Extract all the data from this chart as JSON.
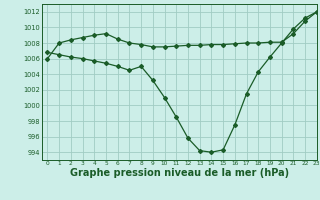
{
  "background_color": "#cceee8",
  "grid_color": "#a0ccc4",
  "line_color": "#1a5c28",
  "xlabel": "Graphe pression niveau de la mer (hPa)",
  "xlabel_fontsize": 7,
  "ylim": [
    993,
    1013
  ],
  "xlim": [
    -0.5,
    23
  ],
  "yticks": [
    994,
    996,
    998,
    1000,
    1002,
    1004,
    1006,
    1008,
    1010,
    1012
  ],
  "xticks": [
    0,
    1,
    2,
    3,
    4,
    5,
    6,
    7,
    8,
    9,
    10,
    11,
    12,
    13,
    14,
    15,
    16,
    17,
    18,
    19,
    20,
    21,
    22,
    23
  ],
  "line1_x": [
    0,
    1,
    2,
    3,
    4,
    5,
    6,
    7,
    8,
    9,
    10,
    11,
    12,
    13,
    14,
    15,
    16,
    17,
    18,
    19,
    20,
    21,
    22,
    23
  ],
  "line1_y": [
    1006.0,
    1008.0,
    1008.4,
    1008.7,
    1009.0,
    1009.2,
    1008.5,
    1008.0,
    1007.8,
    1007.5,
    1007.5,
    1007.6,
    1007.7,
    1007.7,
    1007.8,
    1007.8,
    1007.9,
    1008.0,
    1008.0,
    1008.1,
    1008.1,
    1009.2,
    1010.8,
    1012.0
  ],
  "line2_x": [
    0,
    1,
    2,
    3,
    4,
    5,
    6,
    7,
    8,
    9,
    10,
    11,
    12,
    13,
    14,
    15,
    16,
    17,
    18,
    19,
    20,
    21,
    22,
    23
  ],
  "line2_y": [
    1006.8,
    1006.5,
    1006.2,
    1006.0,
    1005.7,
    1005.4,
    1005.0,
    1004.5,
    1005.0,
    1003.2,
    1001.0,
    998.5,
    995.8,
    994.2,
    994.0,
    994.3,
    997.5,
    1001.5,
    1004.3,
    1006.2,
    1008.0,
    1009.8,
    1011.2,
    1012.0
  ]
}
